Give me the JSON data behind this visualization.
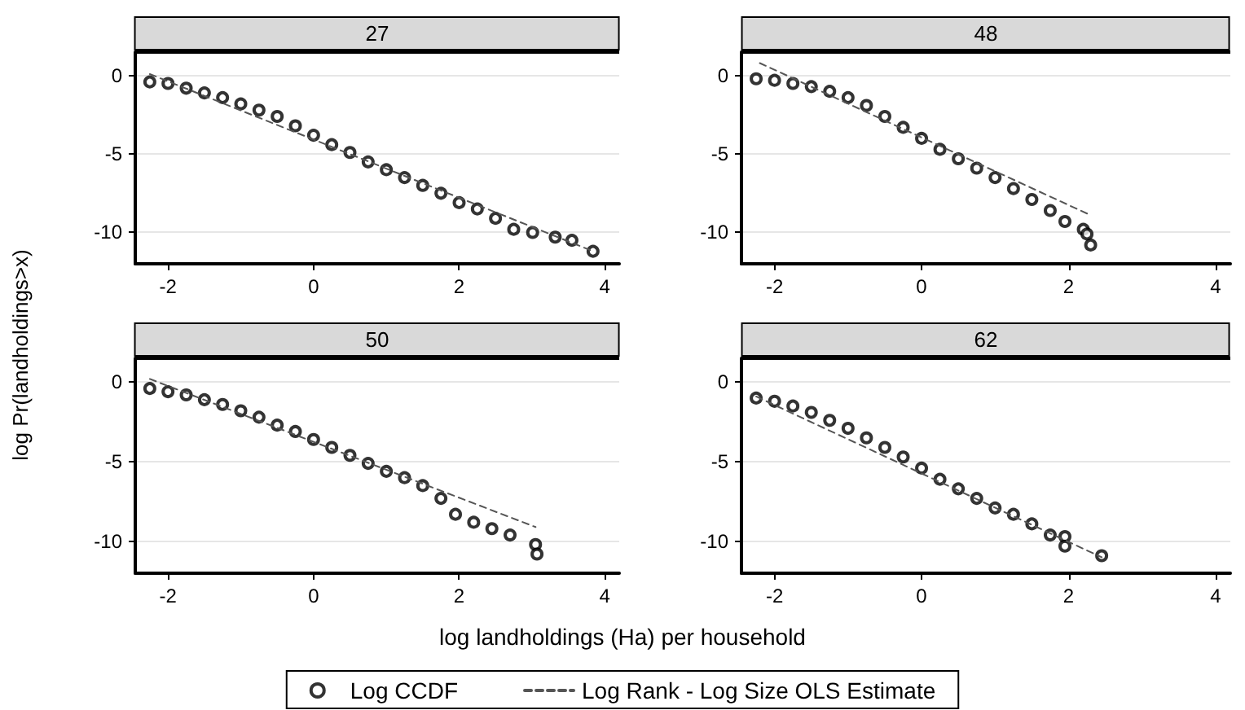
{
  "chart_data": [
    {
      "type": "scatter",
      "title": "27",
      "xlabel": "log landholdings (Ha) per household",
      "ylabel": "log Pr(landholdings>x)",
      "legend": "bottom",
      "grid": "y",
      "marker": "circle",
      "xlim": [
        -2.45,
        4.2
      ],
      "xticks": [
        -2,
        0,
        2,
        4
      ],
      "ylim": [
        -12,
        1.5
      ],
      "yticks": [
        -10,
        -5,
        0
      ],
      "series": [
        {
          "name": "Log CCDF",
          "color": "#000000",
          "x": [
            -2.25,
            -2,
            -1.75,
            -1.5,
            -1.25,
            -1,
            -0.75,
            -0.5,
            -0.25,
            0,
            0.25,
            0.5,
            0.75,
            1,
            1.25,
            1.5,
            1.75,
            2,
            2.25,
            2.5,
            2.75,
            3.01,
            3.32,
            3.55,
            3.84
          ],
          "values": [
            -0.4,
            -0.5,
            -0.8,
            -1.1,
            -1.4,
            -1.8,
            -2.2,
            -2.6,
            -3.2,
            -3.8,
            -4.4,
            -4.9,
            -5.5,
            -6,
            -6.5,
            -7,
            -7.5,
            -8.1,
            -8.5,
            -9.1,
            -9.8,
            -10,
            -10.3,
            -10.5,
            -11.2
          ]
        },
        {
          "name": "Log Rank - Log Size OLS Estimate",
          "type": "line",
          "marker": "none",
          "line_style": "dashed",
          "color": "#555555",
          "x": [
            -2.25,
            3.84
          ],
          "values": [
            0.1,
            -11.2
          ]
        }
      ]
    },
    {
      "type": "scatter",
      "title": "48",
      "grid": "y",
      "marker": "circle",
      "xlim": [
        -2.45,
        4.2
      ],
      "xticks": [
        -2,
        0,
        2,
        4
      ],
      "ylim": [
        -12,
        1.5
      ],
      "yticks": [
        -10,
        -5,
        0
      ],
      "series": [
        {
          "color": "#000000",
          "x": [
            -2.25,
            -2,
            -1.75,
            -1.5,
            -1.25,
            -1,
            -0.75,
            -0.5,
            -0.25,
            0,
            0.25,
            0.5,
            0.75,
            1,
            1.25,
            1.5,
            1.75,
            1.95,
            2.2,
            2.25,
            2.3
          ],
          "values": [
            -0.2,
            -0.3,
            -0.5,
            -0.7,
            -1,
            -1.4,
            -1.9,
            -2.6,
            -3.3,
            -4,
            -4.7,
            -5.3,
            -5.9,
            -6.5,
            -7.2,
            -7.9,
            -8.6,
            -9.3,
            -9.8,
            -10.1,
            -10.8
          ]
        },
        {
          "type": "line",
          "marker": "none",
          "line_style": "dashed",
          "color": "#555555",
          "x": [
            -2.2,
            2.3
          ],
          "values": [
            0.8,
            -8.9
          ]
        }
      ]
    },
    {
      "type": "scatter",
      "title": "50",
      "grid": "y",
      "marker": "circle",
      "xlim": [
        -2.45,
        4.2
      ],
      "xticks": [
        -2,
        0,
        2,
        4
      ],
      "ylim": [
        -12,
        1.5
      ],
      "yticks": [
        -10,
        -5,
        0
      ],
      "series": [
        {
          "color": "#000000",
          "x": [
            -2.25,
            -2,
            -1.75,
            -1.5,
            -1.25,
            -1,
            -0.75,
            -0.5,
            -0.25,
            0,
            0.25,
            0.5,
            0.75,
            1,
            1.25,
            1.5,
            1.75,
            1.95,
            2.2,
            2.45,
            2.7,
            3.05,
            3.07
          ],
          "values": [
            -0.4,
            -0.6,
            -0.8,
            -1.1,
            -1.4,
            -1.8,
            -2.2,
            -2.7,
            -3.1,
            -3.6,
            -4.1,
            -4.6,
            -5.1,
            -5.6,
            -6,
            -6.5,
            -7.3,
            -8.3,
            -8.8,
            -9.2,
            -9.6,
            -10.2,
            -10.8
          ]
        },
        {
          "type": "line",
          "marker": "none",
          "line_style": "dashed",
          "color": "#555555",
          "x": [
            -2.25,
            3.05
          ],
          "values": [
            0.2,
            -9.1
          ]
        }
      ]
    },
    {
      "type": "scatter",
      "title": "62",
      "grid": "y",
      "marker": "circle",
      "xlim": [
        -2.45,
        4.2
      ],
      "xticks": [
        -2,
        0,
        2,
        4
      ],
      "ylim": [
        -12,
        1.5
      ],
      "yticks": [
        -10,
        -5,
        0
      ],
      "series": [
        {
          "color": "#000000",
          "x": [
            -2.25,
            -2,
            -1.75,
            -1.5,
            -1.25,
            -1,
            -0.75,
            -0.5,
            -0.25,
            0,
            0.25,
            0.5,
            0.75,
            1,
            1.25,
            1.5,
            1.75,
            1.95,
            1.95,
            2.45
          ],
          "values": [
            -1,
            -1.2,
            -1.5,
            -1.9,
            -2.4,
            -2.9,
            -3.5,
            -4.1,
            -4.7,
            -5.4,
            -6.1,
            -6.7,
            -7.3,
            -7.9,
            -8.3,
            -8.9,
            -9.6,
            -9.7,
            -10.3,
            -10.9
          ]
        },
        {
          "type": "line",
          "marker": "none",
          "line_style": "dashed",
          "color": "#555555",
          "x": [
            -2.25,
            2.45
          ],
          "values": [
            -0.9,
            -11
          ]
        }
      ]
    }
  ]
}
